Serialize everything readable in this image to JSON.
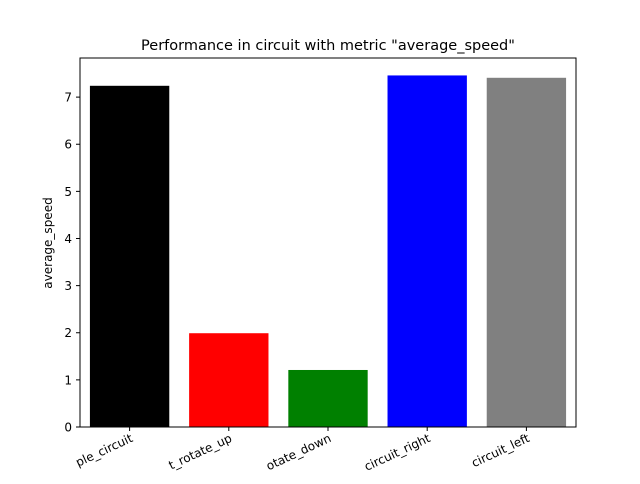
{
  "chart_data": {
    "type": "bar",
    "title": "Performance in circuit with metric \"average_speed\"",
    "xlabel": "",
    "ylabel": "average_speed",
    "categories": [
      "simple_circuit",
      "simple_circuit_rotate_up",
      "simple_circuit_rotate_down",
      "simple_circuit_right",
      "simple_circuit_left"
    ],
    "tick_labels_visible": [
      "ple_circuit",
      "t_rotate_up",
      "otate_down",
      "circuit_right",
      "circuit_left"
    ],
    "values": [
      7.24,
      1.99,
      1.21,
      7.46,
      7.41
    ],
    "bar_colors": [
      "#000000",
      "#ff0000",
      "#008000",
      "#0000ff",
      "#808080"
    ],
    "ylim": [
      0,
      7.83
    ],
    "yticks": [
      0,
      1,
      2,
      3,
      4,
      5,
      6,
      7
    ],
    "grid": false,
    "legend": null
  }
}
